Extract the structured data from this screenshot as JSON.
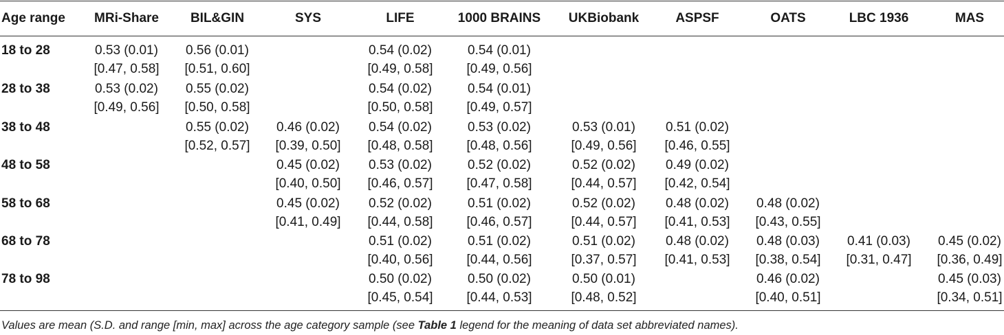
{
  "headers": [
    "Age range",
    "MRi-Share",
    "BIL&GIN",
    "SYS",
    "LIFE",
    "1000 BRAINS",
    "UKBiobank",
    "ASPSF",
    "OATS",
    "LBC 1936",
    "MAS"
  ],
  "rows": [
    {
      "age": "18 to 28",
      "cells": [
        [
          "0.53 (0.01)",
          "[0.47, 0.58]"
        ],
        [
          "0.56 (0.01)",
          "[0.51, 0.60]"
        ],
        null,
        [
          "0.54 (0.02)",
          "[0.49, 0.58]"
        ],
        [
          "0.54 (0.01)",
          "[0.49, 0.56]"
        ],
        null,
        null,
        null,
        null,
        null
      ]
    },
    {
      "age": "28 to 38",
      "cells": [
        [
          "0.53 (0.02)",
          "[0.49, 0.56]"
        ],
        [
          "0.55 (0.02)",
          "[0.50, 0.58]"
        ],
        null,
        [
          "0.54 (0.02)",
          "[0.50, 0.58]"
        ],
        [
          "0.54 (0.01)",
          "[0.49, 0.57]"
        ],
        null,
        null,
        null,
        null,
        null
      ]
    },
    {
      "age": "38 to 48",
      "cells": [
        null,
        [
          "0.55 (0.02)",
          "[0.52, 0.57]"
        ],
        [
          "0.46 (0.02)",
          "[0.39, 0.50]"
        ],
        [
          "0.54 (0.02)",
          "[0.48, 0.58]"
        ],
        [
          "0.53 (0.02)",
          "[0.48, 0.56]"
        ],
        [
          "0.53 (0.01)",
          "[0.49, 0.56]"
        ],
        [
          "0.51 (0.02)",
          "[0.46, 0.55]"
        ],
        null,
        null,
        null
      ]
    },
    {
      "age": "48 to 58",
      "cells": [
        null,
        null,
        [
          "0.45 (0.02)",
          "[0.40, 0.50]"
        ],
        [
          "0.53 (0.02)",
          "[0.46, 0.57]"
        ],
        [
          "0.52 (0.02)",
          "[0.47, 0.58]"
        ],
        [
          "0.52 (0.02)",
          "[0.44, 0.57]"
        ],
        [
          "0.49 (0.02)",
          "[0.42, 0.54]"
        ],
        null,
        null,
        null
      ]
    },
    {
      "age": "58 to 68",
      "cells": [
        null,
        null,
        [
          "0.45 (0.02)",
          "[0.41, 0.49]"
        ],
        [
          "0.52 (0.02)",
          "[0.44, 0.58]"
        ],
        [
          "0.51 (0.02)",
          "[0.46, 0.57]"
        ],
        [
          "0.52 (0.02)",
          "[0.44, 0.57]"
        ],
        [
          "0.48 (0.02)",
          "[0.41, 0.53]"
        ],
        [
          "0.48 (0.02)",
          "[0.43, 0.55]"
        ],
        null,
        null
      ]
    },
    {
      "age": "68 to 78",
      "cells": [
        null,
        null,
        null,
        [
          "0.51 (0.02)",
          "[0.40, 0.56]"
        ],
        [
          "0.51 (0.02)",
          "[0.44, 0.56]"
        ],
        [
          "0.51 (0.02)",
          "[0.37, 0.57]"
        ],
        [
          "0.48 (0.02)",
          "[0.41, 0.53]"
        ],
        [
          "0.48 (0.03)",
          "[0.38, 0.54]"
        ],
        [
          "0.41 (0.03)",
          "[0.31, 0.47]"
        ],
        [
          "0.45 (0.02)",
          "[0.36, 0.49]"
        ]
      ]
    },
    {
      "age": "78 to 98",
      "cells": [
        null,
        null,
        null,
        [
          "0.50 (0.02)",
          "[0.45, 0.54]"
        ],
        [
          "0.50 (0.02)",
          "[0.44, 0.53]"
        ],
        [
          "0.50 (0.01)",
          "[0.48, 0.52]"
        ],
        null,
        [
          "0.46 (0.02)",
          "[0.40, 0.51]"
        ],
        null,
        [
          "0.45 (0.03)",
          "[0.34, 0.51]"
        ]
      ]
    }
  ],
  "caption": {
    "before": "Values are mean (S.D. and range [min, max] across the age category sample (see ",
    "ref": "Table 1",
    "after": " legend for the meaning of data set abbreviated names)."
  }
}
